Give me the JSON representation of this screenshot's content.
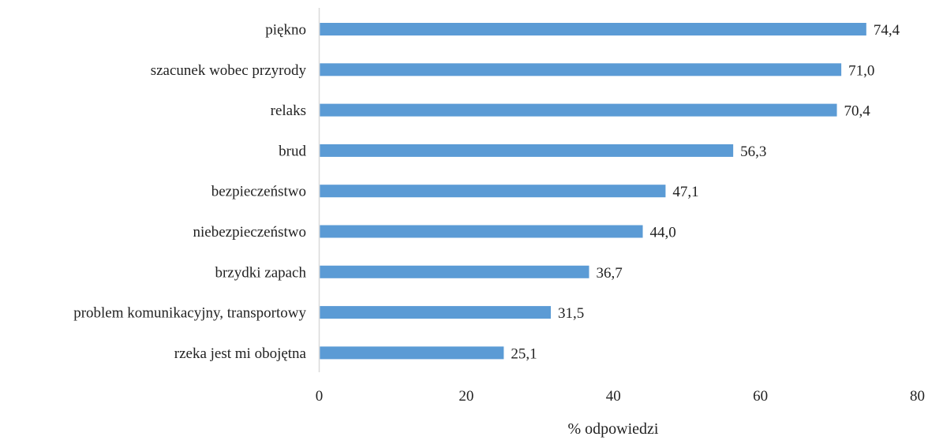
{
  "chart_data": {
    "type": "bar",
    "orientation": "horizontal",
    "categories": [
      "piękno",
      "szacunek wobec przyrody",
      "relaks",
      "brud",
      "bezpieczeństwo",
      "niebezpieczeństwo",
      "brzydki zapach",
      "problem komunikacyjny, transportowy",
      "rzeka jest mi obojętna"
    ],
    "values": [
      74.4,
      71.0,
      70.4,
      56.3,
      47.1,
      44.0,
      36.7,
      31.5,
      25.1
    ],
    "value_labels": [
      "74,4",
      "71,0",
      "70,4",
      "56,3",
      "47,1",
      "44,0",
      "36,7",
      "31,5",
      "25,1"
    ],
    "xlim": [
      0,
      80
    ],
    "xticks": [
      0,
      20,
      40,
      60,
      80
    ],
    "xtick_labels": [
      "0",
      "20",
      "40",
      "60",
      "80"
    ],
    "xlabel": "% odpowiedzi",
    "grid": false,
    "legend": "none",
    "bar_color": "#5b9bd5",
    "axis_color": "#d9d9d9"
  }
}
